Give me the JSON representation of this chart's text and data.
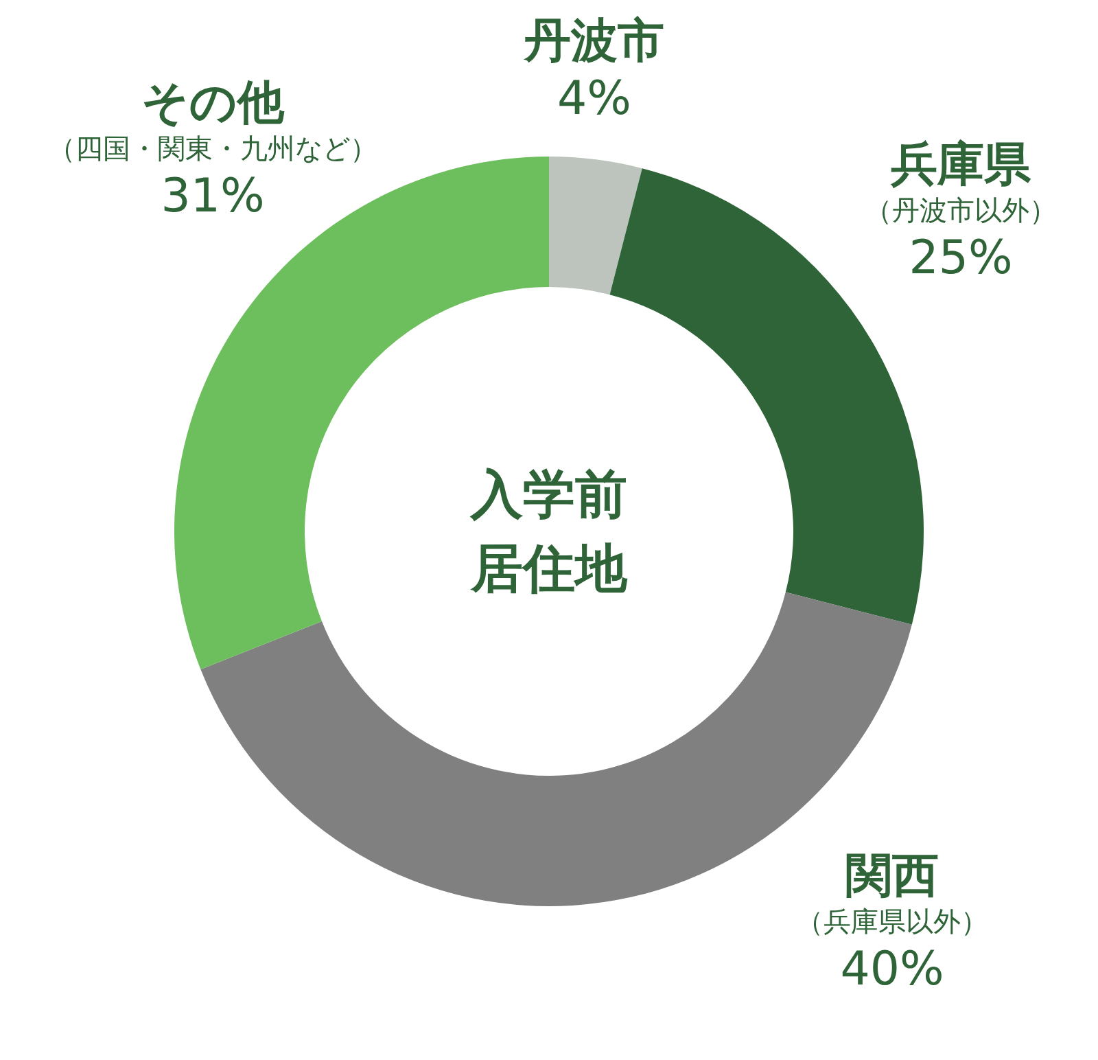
{
  "chart_data": {
    "type": "donut",
    "title": "入学前居住地",
    "categories": [
      "丹波市",
      "兵庫県（丹波市以外）",
      "関西（兵庫県以外）",
      "その他（四国・関東・九州など）"
    ],
    "values": [
      4,
      25,
      40,
      31
    ],
    "colors": [
      "#bcc4bd",
      "#2e6437",
      "#808080",
      "#6dbf5e"
    ],
    "value_labels": [
      "4%",
      "25%",
      "40%",
      "31%"
    ]
  }
}
